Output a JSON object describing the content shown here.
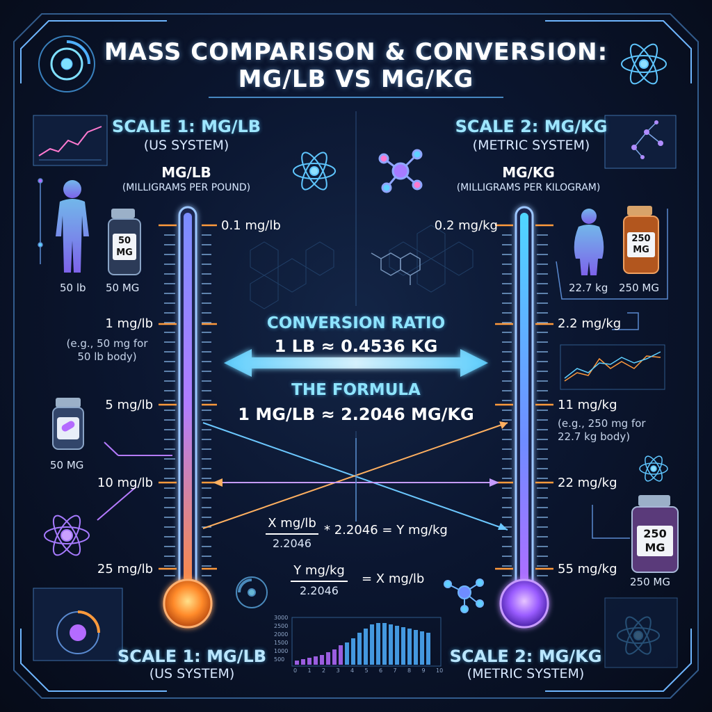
{
  "title": {
    "line1": "MASS COMPARISON & CONVERSION:",
    "line2": "MG/LB VS MG/KG"
  },
  "left": {
    "heading": "SCALE 1: MG/LB",
    "system": "(US SYSTEM)",
    "unit": "MG/LB",
    "unit_full": "(MILLIGRAMS PER POUND)",
    "person_weight": "50 lb",
    "bottle_label": "50 MG",
    "bottle_caption": "50 MG",
    "pill_caption": "50 MG",
    "ticks": [
      "0.1 mg/lb",
      "1 mg/lb",
      "5 mg/lb",
      "10 mg/lb",
      "25 mg/lb"
    ],
    "example": "(e.g., 50 mg for 50 lb body)",
    "footer_heading": "SCALE 1: MG/LB",
    "footer_system": "(US SYSTEM)"
  },
  "right": {
    "heading": "SCALE 2: MG/KG",
    "system": "(METRIC SYSTEM)",
    "unit": "MG/KG",
    "unit_full": "(MILLIGRAMS PER KILOGRAM)",
    "person_weight": "22.7 kg",
    "bottle_label": "250 MG",
    "bottle_caption": "250 MG",
    "bottle2_label": "250 MG",
    "bottle2_caption": "250 MG",
    "ticks": [
      "0.2 mg/kg",
      "2.2 mg/kg",
      "11 mg/kg",
      "22 mg/kg",
      "55 mg/kg"
    ],
    "example": "(e.g., 250 mg for 22.7 kg body)",
    "footer_heading": "SCALE 2: MG/KG",
    "footer_system": "(METRIC SYSTEM)"
  },
  "center": {
    "ratio_heading": "CONVERSION RATIO",
    "ratio_value": "1 LB ≈ 0.4536 KG",
    "formula_heading": "THE FORMULA",
    "formula_value": "1 MG/LB ≈ 2.2046 MG/KG",
    "eq1_num": "X mg/lb",
    "eq1_den": "2.2046",
    "eq1_rest": "* 2.2046 = Y mg/kg",
    "eq2_num": "Y mg/kg",
    "eq2_den": "2.2046",
    "eq2_rest": "= X mg/lb"
  },
  "mini_chart": {
    "y_ticks": [
      "3000",
      "2500",
      "2000",
      "1500",
      "1000",
      "500"
    ],
    "x_ticks": [
      "0",
      "1",
      "2",
      "3",
      "4",
      "5",
      "6",
      "7",
      "8",
      "9",
      "10"
    ]
  },
  "colors": {
    "accent_cyan": "#7fd8ff",
    "warm": "#ff9a3c",
    "purple": "#a77bff",
    "background": "#0b1630"
  }
}
